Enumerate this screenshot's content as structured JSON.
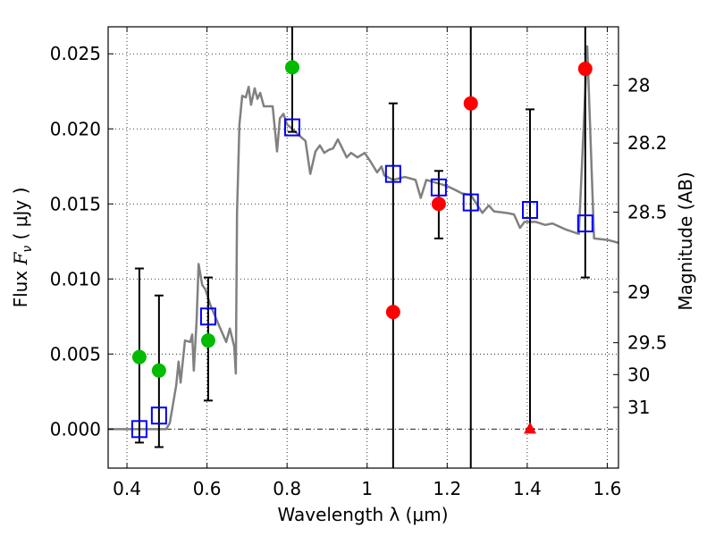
{
  "chart_data": {
    "type": "scatter",
    "title": "",
    "xlabel": "Wavelength  λ (μm)",
    "ylabel": "Flux  F_ν  ( μJy )",
    "ylabel_parts": {
      "prefix": "Flux  ",
      "symbol": "F",
      "subscript": "ν",
      "suffix": "  ( μJy )"
    },
    "ylabel_right": "Magnitude (AB)",
    "xlim": [
      0.353,
      1.628
    ],
    "ylim": [
      -0.0026,
      0.0268
    ],
    "grid": true,
    "x_ticks": [
      {
        "value": 0.4,
        "label": "0.4"
      },
      {
        "value": 0.6,
        "label": "0.6"
      },
      {
        "value": 0.8,
        "label": "0.8"
      },
      {
        "value": 1.0,
        "label": "1"
      },
      {
        "value": 1.2,
        "label": "1.2"
      },
      {
        "value": 1.4,
        "label": "1.4"
      },
      {
        "value": 1.6,
        "label": "1.6"
      }
    ],
    "y_ticks": [
      {
        "value": 0.0,
        "label": "0.000"
      },
      {
        "value": 0.005,
        "label": "0.005"
      },
      {
        "value": 0.01,
        "label": "0.010"
      },
      {
        "value": 0.015,
        "label": "0.015"
      },
      {
        "value": 0.02,
        "label": "0.020"
      },
      {
        "value": 0.025,
        "label": "0.025"
      }
    ],
    "right_ticks": [
      {
        "mag": 28,
        "label": "28"
      },
      {
        "mag": 28.2,
        "label": "28.2"
      },
      {
        "mag": 28.5,
        "label": "28.5"
      },
      {
        "mag": 29,
        "label": "29"
      },
      {
        "mag": 29.5,
        "label": "29.5"
      },
      {
        "mag": 30,
        "label": "30"
      },
      {
        "mag": 31,
        "label": "31"
      }
    ],
    "mag_zeropoint": 23.9,
    "colors": {
      "spectrum": "#808080",
      "model": "#0000ff",
      "obs_green": "#00bb00",
      "obs_red": "#ff0000",
      "errorbar": "#000000"
    },
    "series": [
      {
        "name": "spectrum",
        "kind": "line",
        "points": [
          [
            0.351,
            0
          ],
          [
            0.498,
            0
          ],
          [
            0.507,
            0.0004
          ],
          [
            0.523,
            0.0029
          ],
          [
            0.529,
            0.0045
          ],
          [
            0.534,
            0.0031
          ],
          [
            0.545,
            0.0059
          ],
          [
            0.558,
            0.0058
          ],
          [
            0.563,
            0.0063
          ],
          [
            0.567,
            0.0039
          ],
          [
            0.574,
            0.0072
          ],
          [
            0.579,
            0.011
          ],
          [
            0.588,
            0.0096
          ],
          [
            0.596,
            0.0093
          ],
          [
            0.608,
            0.0083
          ],
          [
            0.63,
            0.0069
          ],
          [
            0.648,
            0.0058
          ],
          [
            0.657,
            0.0067
          ],
          [
            0.668,
            0.0055
          ],
          [
            0.672,
            0.0037
          ],
          [
            0.675,
            0.0144
          ],
          [
            0.681,
            0.0203
          ],
          [
            0.688,
            0.0222
          ],
          [
            0.697,
            0.0221
          ],
          [
            0.704,
            0.0228
          ],
          [
            0.71,
            0.0216
          ],
          [
            0.719,
            0.0227
          ],
          [
            0.726,
            0.022
          ],
          [
            0.733,
            0.0224
          ],
          [
            0.742,
            0.0215
          ],
          [
            0.764,
            0.0215
          ],
          [
            0.775,
            0.0185
          ],
          [
            0.782,
            0.0207
          ],
          [
            0.791,
            0.021
          ],
          [
            0.8,
            0.0203
          ],
          [
            0.813,
            0.02
          ],
          [
            0.837,
            0.0194
          ],
          [
            0.846,
            0.0192
          ],
          [
            0.858,
            0.017
          ],
          [
            0.871,
            0.0185
          ],
          [
            0.882,
            0.0189
          ],
          [
            0.893,
            0.0184
          ],
          [
            0.904,
            0.0186
          ],
          [
            0.915,
            0.0187
          ],
          [
            0.927,
            0.0193
          ],
          [
            0.938,
            0.0187
          ],
          [
            0.949,
            0.0181
          ],
          [
            0.96,
            0.0184
          ],
          [
            0.976,
            0.0181
          ],
          [
            0.994,
            0.0184
          ],
          [
            1.009,
            0.0178
          ],
          [
            1.025,
            0.0171
          ],
          [
            1.036,
            0.0175
          ],
          [
            1.043,
            0.0169
          ],
          [
            1.065,
            0.0166
          ],
          [
            1.094,
            0.0168
          ],
          [
            1.121,
            0.0166
          ],
          [
            1.134,
            0.0154
          ],
          [
            1.148,
            0.0166
          ],
          [
            1.199,
            0.0162
          ],
          [
            1.215,
            0.016
          ],
          [
            1.237,
            0.0157
          ],
          [
            1.259,
            0.0156
          ],
          [
            1.288,
            0.0144
          ],
          [
            1.304,
            0.0149
          ],
          [
            1.317,
            0.0145
          ],
          [
            1.349,
            0.0144
          ],
          [
            1.367,
            0.0143
          ],
          [
            1.382,
            0.0134
          ],
          [
            1.393,
            0.0138
          ],
          [
            1.422,
            0.0138
          ],
          [
            1.445,
            0.0136
          ],
          [
            1.463,
            0.0137
          ],
          [
            1.496,
            0.0133
          ],
          [
            1.529,
            0.013
          ],
          [
            1.55,
            0.0255
          ],
          [
            1.567,
            0.0127
          ],
          [
            1.601,
            0.0126
          ],
          [
            1.629,
            0.0124
          ]
        ]
      },
      {
        "name": "model photometry",
        "kind": "square",
        "points": [
          [
            0.431,
            0.0
          ],
          [
            0.48,
            0.0009
          ],
          [
            0.603,
            0.0075
          ],
          [
            0.813,
            0.0201
          ],
          [
            1.065,
            0.017
          ],
          [
            1.179,
            0.0161
          ],
          [
            1.259,
            0.0151
          ],
          [
            1.407,
            0.0146
          ],
          [
            1.545,
            0.0137
          ]
        ]
      },
      {
        "name": "observed (green)",
        "kind": "circle-green",
        "points": [
          [
            0.431,
            0.0048
          ],
          [
            0.48,
            0.0039
          ],
          [
            0.603,
            0.0059
          ],
          [
            0.813,
            0.0241
          ]
        ]
      },
      {
        "name": "observed (red)",
        "kind": "circle-red",
        "points": [
          [
            1.065,
            0.0078
          ],
          [
            1.179,
            0.015
          ],
          [
            1.259,
            0.0217
          ],
          [
            1.545,
            0.024
          ]
        ]
      },
      {
        "name": "upper limit",
        "kind": "triangle-red",
        "points": [
          [
            1.407,
            0.0
          ]
        ]
      }
    ],
    "errorbars": [
      {
        "x": 0.431,
        "lo": -0.0009,
        "hi": 0.0107
      },
      {
        "x": 0.48,
        "lo": -0.0012,
        "hi": 0.0089
      },
      {
        "x": 0.603,
        "lo": 0.0019,
        "hi": 0.0101
      },
      {
        "x": 0.813,
        "lo": 0.0198,
        "hi": 0.0284
      },
      {
        "x": 1.065,
        "lo": -0.0061,
        "hi": 0.0217
      },
      {
        "x": 1.179,
        "lo": 0.0127,
        "hi": 0.0172
      },
      {
        "x": 1.259,
        "lo": -0.008,
        "hi": 0.05
      },
      {
        "x": 1.407,
        "lo": 0.0,
        "hi": 0.0213
      },
      {
        "x": 1.545,
        "lo": 0.0101,
        "hi": 0.0379
      }
    ]
  }
}
